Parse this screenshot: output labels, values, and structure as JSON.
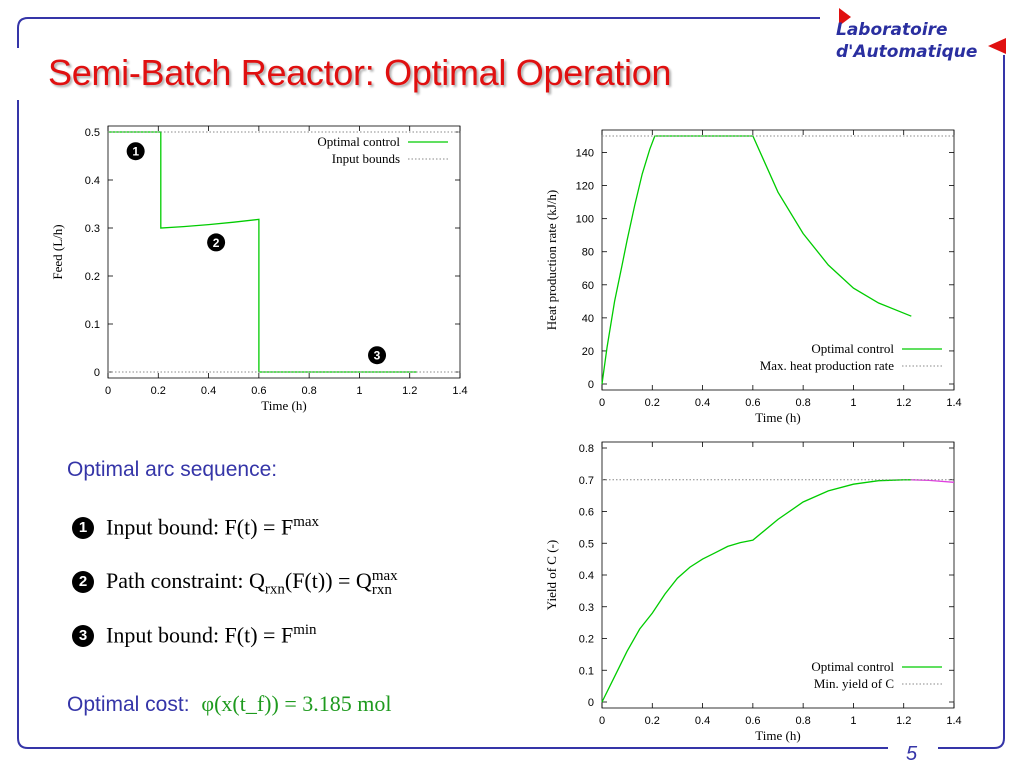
{
  "slide": {
    "title": "Semi-Batch Reactor: Optimal Operation",
    "page_number": "5",
    "logo": {
      "line1": "Laboratoire",
      "line2": "d'Automatique"
    },
    "colors": {
      "title": "#e01010",
      "frame": "#3535a8",
      "logo": "#2a2fa0",
      "logo_accent": "#e01010",
      "optimal_control": "#00cc00",
      "tail": "#e040e0"
    },
    "sequence_heading": "Optimal arc sequence:",
    "sequence": [
      {
        "marker": "1",
        "text": "Input bound: F(t) = F",
        "sup": "max"
      },
      {
        "marker": "2",
        "text": "Path constraint: Q",
        "sub": "rxn",
        "text2": "(F(t)) = Q",
        "sup2": "max",
        "sub2": "rxn"
      },
      {
        "marker": "3",
        "text": "Input bound: F(t) = F",
        "sup": "min"
      }
    ],
    "cost_label": "Optimal cost:",
    "cost_value": "φ(x(t_f)) = 3.185 mol"
  },
  "chart_data": [
    {
      "type": "line",
      "ylabel": "Feed (L/h)",
      "xlabel": "Time (h)",
      "xlim": [
        0,
        1.4
      ],
      "ylim": [
        0,
        0.5
      ],
      "xticks": [
        "0",
        "0.2",
        "0.4",
        "0.6",
        "0.8",
        "1",
        "1.2",
        "1.4"
      ],
      "yticks": [
        "0",
        "0.1",
        "0.2",
        "0.3",
        "0.4",
        "0.5"
      ],
      "legend_position": "top-right",
      "series": [
        {
          "name": "Optimal control",
          "style": "solid",
          "color": "#00cc00",
          "x": [
            0,
            0.21,
            0.21,
            0.3,
            0.4,
            0.5,
            0.6,
            0.6,
            1.23
          ],
          "y": [
            0.5,
            0.5,
            0.3,
            0.303,
            0.307,
            0.312,
            0.318,
            0,
            0
          ]
        },
        {
          "name": "Input bounds",
          "style": "dotted",
          "color": "#888888",
          "x": [
            0,
            1.48
          ],
          "y": [
            0.5,
            0.5
          ]
        },
        {
          "name": "",
          "style": "dotted",
          "color": "#888888",
          "x": [
            0,
            1.48
          ],
          "y": [
            0,
            0
          ]
        }
      ],
      "annotations": [
        {
          "text": "1",
          "x": 0.11,
          "y": 0.46
        },
        {
          "text": "2",
          "x": 0.43,
          "y": 0.27
        },
        {
          "text": "3",
          "x": 1.07,
          "y": 0.035
        }
      ]
    },
    {
      "type": "line",
      "ylabel": "Heat production rate (kJ/h)",
      "xlabel": "Time (h)",
      "xlim": [
        0,
        1.4
      ],
      "ylim": [
        0,
        150
      ],
      "xticks": [
        "0",
        "0.2",
        "0.4",
        "0.6",
        "0.8",
        "1",
        "1.2",
        "1.4"
      ],
      "yticks": [
        "0",
        "20",
        "40",
        "60",
        "80",
        "100",
        "120",
        "140"
      ],
      "legend_position": "bottom-right",
      "series": [
        {
          "name": "Optimal control",
          "style": "solid",
          "color": "#00cc00",
          "x": [
            0,
            0.02,
            0.05,
            0.08,
            0.1,
            0.13,
            0.16,
            0.19,
            0.21,
            0.6,
            0.7,
            0.8,
            0.9,
            1.0,
            1.1,
            1.23
          ],
          "y": [
            0,
            22,
            50,
            72,
            87,
            108,
            127,
            142,
            150,
            150,
            116,
            91,
            72,
            58,
            49,
            41
          ]
        },
        {
          "name": "Max. heat production rate",
          "style": "dotted",
          "color": "#888888",
          "x": [
            0,
            1.48
          ],
          "y": [
            150,
            150
          ]
        }
      ]
    },
    {
      "type": "line",
      "ylabel": "Yield of C (-)",
      "xlabel": "Time (h)",
      "xlim": [
        0,
        1.4
      ],
      "ylim": [
        0,
        0.8
      ],
      "xticks": [
        "0",
        "0.2",
        "0.4",
        "0.6",
        "0.8",
        "1",
        "1.2",
        "1.4"
      ],
      "yticks": [
        "0",
        "0.1",
        "0.2",
        "0.3",
        "0.4",
        "0.5",
        "0.6",
        "0.7",
        "0.8"
      ],
      "legend_position": "bottom-right",
      "series": [
        {
          "name": "Optimal control",
          "style": "solid",
          "color": "#00cc00",
          "x": [
            0,
            0.05,
            0.1,
            0.15,
            0.2,
            0.25,
            0.3,
            0.35,
            0.4,
            0.45,
            0.5,
            0.55,
            0.6,
            0.7,
            0.8,
            0.9,
            1.0,
            1.1,
            1.2,
            1.23
          ],
          "y": [
            0,
            0.08,
            0.16,
            0.23,
            0.28,
            0.34,
            0.39,
            0.425,
            0.45,
            0.47,
            0.49,
            0.502,
            0.51,
            0.575,
            0.63,
            0.665,
            0.686,
            0.697,
            0.7,
            0.7
          ]
        },
        {
          "name": "",
          "style": "solid",
          "color": "#e040e0",
          "x": [
            1.23,
            1.3,
            1.4
          ],
          "y": [
            0.7,
            0.698,
            0.692
          ]
        },
        {
          "name": "Min. yield of C",
          "style": "dotted",
          "color": "#888888",
          "x": [
            0,
            1.48
          ],
          "y": [
            0.7,
            0.7
          ]
        }
      ]
    }
  ]
}
